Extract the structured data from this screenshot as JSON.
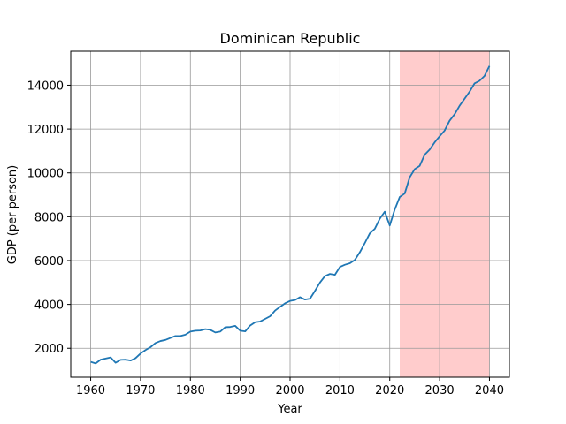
{
  "chart_data": {
    "type": "line",
    "title": "Dominican Republic",
    "xlabel": "Year",
    "ylabel": "GDP (per person)",
    "xlim": [
      1956,
      2044
    ],
    "ylim": [
      680,
      15550
    ],
    "xticks": [
      1960,
      1970,
      1980,
      1990,
      2000,
      2010,
      2020,
      2030,
      2040
    ],
    "yticks": [
      2000,
      4000,
      6000,
      8000,
      10000,
      12000,
      14000
    ],
    "grid": true,
    "forecast_span": [
      2022,
      2040
    ],
    "colors": {
      "line": "#1f77b4",
      "forecast_band": "#ffcccc",
      "grid": "#999999"
    },
    "series": [
      {
        "name": "GDP per person",
        "x": [
          1960,
          1961,
          1962,
          1963,
          1964,
          1965,
          1966,
          1967,
          1968,
          1969,
          1970,
          1971,
          1972,
          1973,
          1974,
          1975,
          1976,
          1977,
          1978,
          1979,
          1980,
          1981,
          1982,
          1983,
          1984,
          1985,
          1986,
          1987,
          1988,
          1989,
          1990,
          1991,
          1992,
          1993,
          1994,
          1995,
          1996,
          1997,
          1998,
          1999,
          2000,
          2001,
          2002,
          2003,
          2004,
          2005,
          2006,
          2007,
          2008,
          2009,
          2010,
          2011,
          2012,
          2013,
          2014,
          2015,
          2016,
          2017,
          2018,
          2019,
          2020,
          2021,
          2022,
          2023,
          2024,
          2025,
          2026,
          2027,
          2028,
          2029,
          2030,
          2031,
          2032,
          2033,
          2034,
          2035,
          2036,
          2037,
          2038,
          2039,
          2040
        ],
        "values": [
          1380,
          1310,
          1480,
          1530,
          1580,
          1340,
          1470,
          1480,
          1440,
          1550,
          1760,
          1920,
          2050,
          2240,
          2330,
          2380,
          2470,
          2560,
          2560,
          2620,
          2760,
          2800,
          2810,
          2870,
          2840,
          2720,
          2760,
          2960,
          2970,
          3020,
          2800,
          2770,
          3040,
          3190,
          3220,
          3340,
          3460,
          3720,
          3890,
          4050,
          4160,
          4200,
          4330,
          4220,
          4260,
          4620,
          5000,
          5290,
          5390,
          5350,
          5710,
          5810,
          5880,
          6030,
          6380,
          6800,
          7240,
          7450,
          7910,
          8230,
          7600,
          8330,
          8900,
          9060,
          9800,
          10170,
          10320,
          10830,
          11060,
          11390,
          11670,
          11930,
          12380,
          12670,
          13060,
          13380,
          13700,
          14080,
          14200,
          14420,
          14880
        ]
      }
    ]
  }
}
